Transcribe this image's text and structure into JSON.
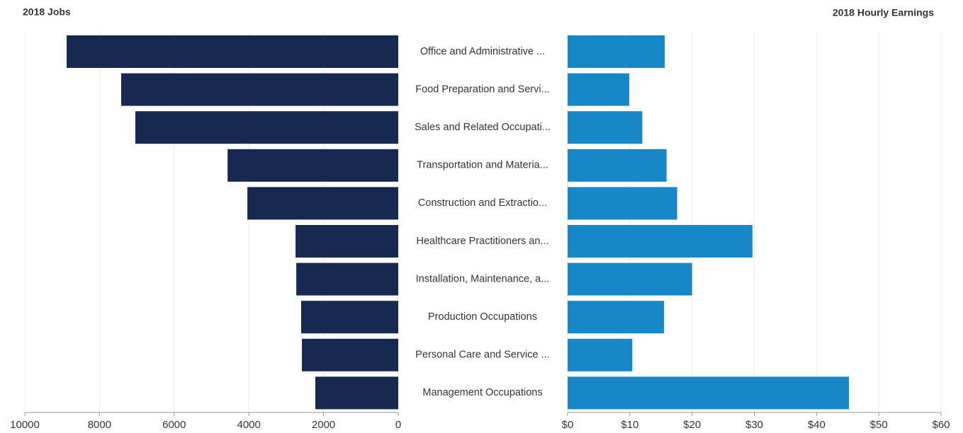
{
  "chart_data": [
    {
      "type": "bar",
      "orientation": "horizontal",
      "title": "2018 Jobs",
      "categories": [
        "Office and Administrative ...",
        "Food Preparation and Servi...",
        "Sales and Related Occupati...",
        "Transportation and Materia...",
        "Construction and Extractio...",
        "Healthcare Practitioners an...",
        "Installation, Maintenance, a...",
        "Production Occupations",
        "Personal Care and Service ...",
        "Management Occupations"
      ],
      "values": [
        8880,
        7420,
        7040,
        4570,
        4040,
        2750,
        2730,
        2600,
        2580,
        2220
      ],
      "color": "#172951",
      "xlim": [
        10000,
        0
      ],
      "xticks": [
        10000,
        8000,
        6000,
        4000,
        2000,
        0
      ],
      "grid": true
    },
    {
      "type": "bar",
      "orientation": "horizontal",
      "title": "2018 Hourly Earnings",
      "values": [
        15.6,
        9.9,
        12.0,
        15.9,
        17.6,
        29.7,
        20.0,
        15.5,
        10.4,
        45.2
      ],
      "color": "#1787c8",
      "xlim": [
        0,
        60
      ],
      "xticks": [
        {
          "value": 0,
          "label": "$0"
        },
        {
          "value": 10,
          "label": "$10"
        },
        {
          "value": 20,
          "label": "$20"
        },
        {
          "value": 30,
          "label": "$30"
        },
        {
          "value": 40,
          "label": "$40"
        },
        {
          "value": 50,
          "label": "$50"
        },
        {
          "value": 60,
          "label": "$60"
        }
      ],
      "grid": true
    }
  ]
}
